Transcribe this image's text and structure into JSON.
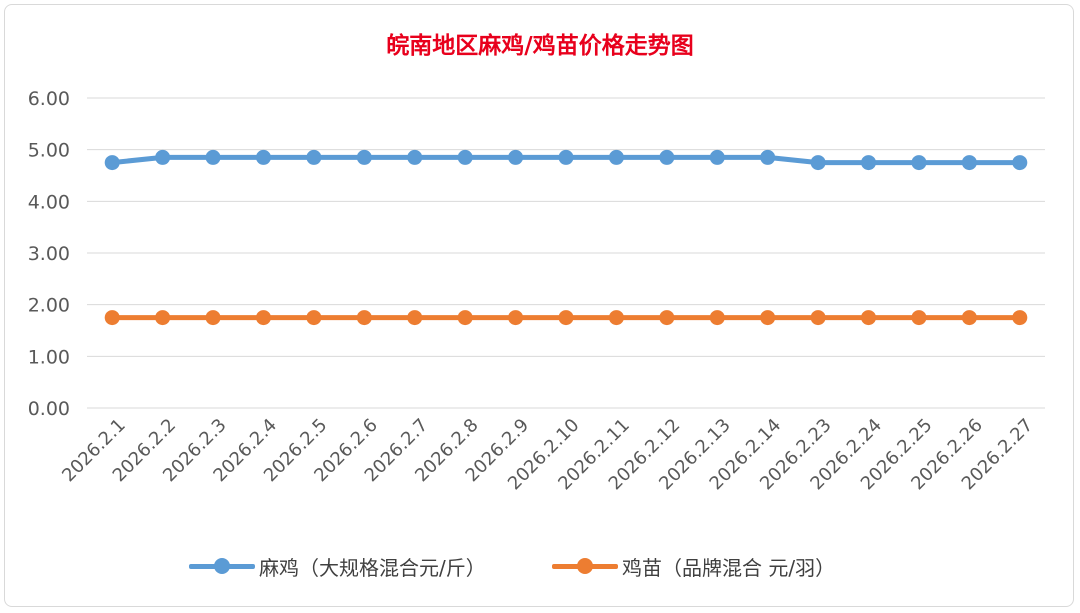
{
  "chart_data": {
    "type": "line",
    "title": "皖南地区麻鸡/鸡苗价格走势图",
    "xlabel": "",
    "ylabel": "",
    "categories": [
      "2026.2.1",
      "2026.2.2",
      "2026.2.3",
      "2026.2.4",
      "2026.2.5",
      "2026.2.6",
      "2026.2.7",
      "2026.2.8",
      "2026.2.9",
      "2026.2.10",
      "2026.2.11",
      "2026.2.12",
      "2026.2.13",
      "2026.2.14",
      "2026.2.23",
      "2026.2.24",
      "2026.2.25",
      "2026.2.26",
      "2026.2.27"
    ],
    "y_ticks": [
      "0.00",
      "1.00",
      "2.00",
      "3.00",
      "4.00",
      "5.00",
      "6.00"
    ],
    "ylim": [
      0,
      6
    ],
    "grid": true,
    "legend_position": "bottom",
    "series": [
      {
        "name": "麻鸡（大规格混合元/斤）",
        "color": "#5b9bd5",
        "values": [
          4.75,
          4.85,
          4.85,
          4.85,
          4.85,
          4.85,
          4.85,
          4.85,
          4.85,
          4.85,
          4.85,
          4.85,
          4.85,
          4.85,
          4.75,
          4.75,
          4.75,
          4.75,
          4.75
        ]
      },
      {
        "name": "鸡苗（品牌混合 元/羽）",
        "color": "#ed7d31",
        "values": [
          1.75,
          1.75,
          1.75,
          1.75,
          1.75,
          1.75,
          1.75,
          1.75,
          1.75,
          1.75,
          1.75,
          1.75,
          1.75,
          1.75,
          1.75,
          1.75,
          1.75,
          1.75,
          1.75
        ]
      }
    ]
  }
}
